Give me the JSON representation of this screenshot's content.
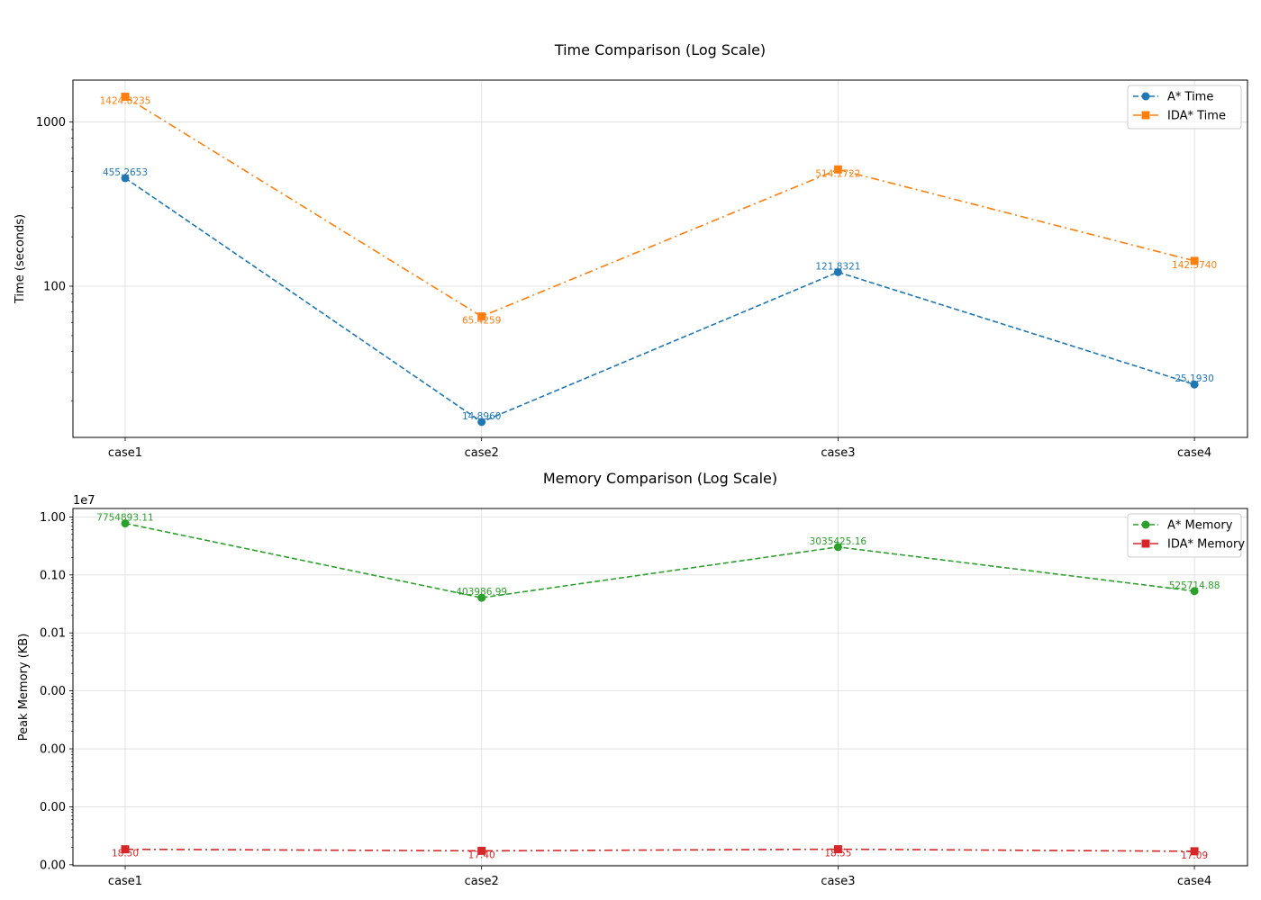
{
  "colors": {
    "astar_time": "#1f77b4",
    "ida_time": "#ff7f0e",
    "astar_memory": "#2ca02c",
    "ida_memory": "#d62728",
    "grid": "#dddddd",
    "axis": "#000000"
  },
  "chart_data": [
    {
      "type": "line",
      "title": "Time Comparison (Log Scale)",
      "xlabel": "",
      "ylabel": "Time (seconds)",
      "yscale": "log",
      "ylim": [
        12,
        1800
      ],
      "categories": [
        "case1",
        "case2",
        "case3",
        "case4"
      ],
      "yticks": [
        {
          "value": 100,
          "label": "100"
        },
        {
          "value": 1000,
          "label": "1000"
        }
      ],
      "legend_position": "top-right",
      "grid": true,
      "series": [
        {
          "name": "A* Time",
          "values": [
            455.2653,
            14.896,
            121.8321,
            25.193
          ],
          "labels": [
            "455.2653",
            "14.8960",
            "121.8321",
            "25.1930"
          ],
          "marker": "circle",
          "line_style": "dashed",
          "color": "#1f77b4",
          "label_side": "above"
        },
        {
          "name": "IDA* Time",
          "values": [
            1424.8235,
            65.4259,
            514.1722,
            142.574
          ],
          "labels": [
            "1424.8235",
            "65.4259",
            "514.1722",
            "142.5740"
          ],
          "marker": "square",
          "line_style": "dashdot",
          "color": "#ff7f0e",
          "label_side": "below"
        }
      ]
    },
    {
      "type": "line",
      "title": "Memory Comparison (Log Scale)",
      "xlabel": "",
      "ylabel": "Peak Memory (KB)",
      "yscale": "log",
      "axis_offset_label": "1e7",
      "ylim": [
        9.6,
        14000000
      ],
      "categories": [
        "case1",
        "case2",
        "case3",
        "case4"
      ],
      "yticks": [
        {
          "value": 10000000,
          "label": "1.00"
        },
        {
          "value": 1000000,
          "label": "0.10"
        },
        {
          "value": 100000,
          "label": "0.01"
        },
        {
          "value": 10000,
          "label": "0.00"
        },
        {
          "value": 1000,
          "label": "0.00"
        },
        {
          "value": 100,
          "label": "0.00"
        },
        {
          "value": 10,
          "label": "0.00"
        }
      ],
      "legend_position": "top-right",
      "grid": true,
      "series": [
        {
          "name": "A* Memory",
          "values": [
            7754893.11,
            403986.99,
            3035425.16,
            525714.88
          ],
          "labels": [
            "7754893.11",
            "403986.99",
            "3035425.16",
            "525714.88"
          ],
          "marker": "circle",
          "line_style": "dashed",
          "color": "#2ca02c",
          "label_side": "above"
        },
        {
          "name": "IDA* Memory",
          "values": [
            18.5,
            17.4,
            18.55,
            17.09
          ],
          "labels": [
            "18.50",
            "17.40",
            "18.55",
            "17.09"
          ],
          "marker": "square",
          "line_style": "dashdot",
          "color": "#d62728",
          "label_side": "below"
        }
      ]
    }
  ]
}
